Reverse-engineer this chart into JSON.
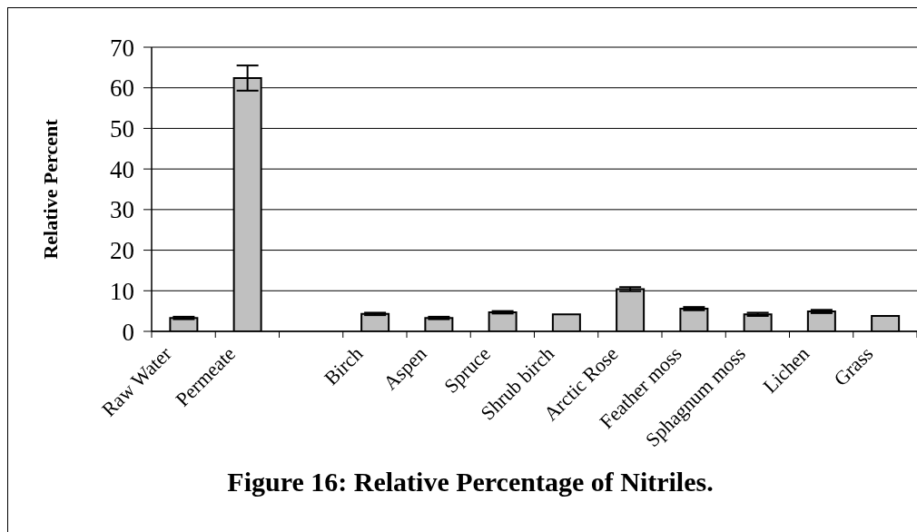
{
  "chart_data": {
    "type": "bar",
    "title": "Figure 16: Relative Percentage of Nitriles.",
    "ylabel": "Relative Percent",
    "categories": [
      "Raw Water",
      "Permeate",
      null,
      "Birch",
      "Aspen",
      "Spruce",
      "Shrub birch",
      "Arctic Rose",
      "Feather moss",
      "Sphagnum moss",
      "Lichen",
      "Grass"
    ],
    "values": [
      3.3,
      62.4,
      null,
      4.3,
      3.3,
      4.7,
      4.2,
      10.4,
      5.6,
      4.2,
      4.9,
      3.8
    ],
    "errors": [
      0.3,
      3.1,
      null,
      0.3,
      0.3,
      0.3,
      null,
      0.5,
      0.4,
      0.4,
      0.4,
      null
    ],
    "color": "#c0c0c0",
    "ylim": [
      0,
      70
    ],
    "yticks": [
      0,
      10,
      20,
      30,
      40,
      50,
      60,
      70
    ],
    "grid": "y"
  }
}
